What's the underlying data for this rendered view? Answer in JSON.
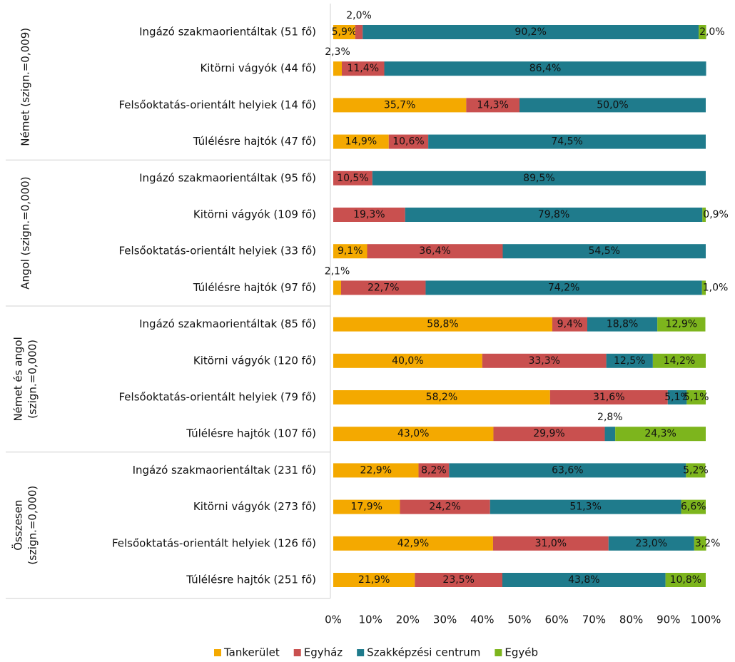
{
  "chart_data": {
    "type": "stacked_bar_horizontal",
    "groups": [
      [
        "Német (szign.=0,009)"
      ],
      [
        "Angol (szign.=0,000)"
      ],
      [
        "Német és angol",
        "(szign.=0,000)"
      ],
      [
        "Összesen",
        "(szign.=0,000)"
      ]
    ],
    "categories": [
      "Ingázó szakmaorientáltak (51 fő)",
      "Kitörni vágyók (44 fő)",
      "Felsőoktatás-orientált helyiek (14 fő)",
      "Túlélésre hajtók (47 fő)",
      "Ingázó szakmaorientáltak (95 fő)",
      "Kitörni vágyók (109 fő)",
      "Felsőoktatás-orientált helyiek (33 fő)",
      "Túlélésre hajtók (97 fő)",
      "Ingázó szakmaorientáltak (85 fő)",
      "Kitörni vágyók (120 fő)",
      "Felsőoktatás-orientált helyiek (79 fő)",
      "Túlélésre hajtók (107 fő)",
      "Ingázó szakmaorientáltak (231 fő)",
      "Kitörni vágyók (273 fő)",
      "Felsőoktatás-orientált helyiek (126 fő)",
      "Túlélésre hajtók (251 fő)"
    ],
    "series": [
      {
        "name": "Tankerület",
        "color": "#f4a900",
        "values": [
          5.9,
          2.3,
          35.7,
          14.9,
          null,
          null,
          9.1,
          2.1,
          58.8,
          40.0,
          58.2,
          43.0,
          22.9,
          17.9,
          42.9,
          21.9
        ],
        "value_labels": [
          "5,9%",
          "2,3%",
          "35,7%",
          "14,9%",
          null,
          null,
          "9,1%",
          "2,1%",
          "58,8%",
          "40,0%",
          "58,2%",
          "43,0%",
          "22,9%",
          "17,9%",
          "42,9%",
          "21,9%"
        ]
      },
      {
        "name": "Egyház",
        "color": "#c9504f",
        "values": [
          2.0,
          11.4,
          14.3,
          10.6,
          10.5,
          19.3,
          36.4,
          22.7,
          9.4,
          33.3,
          31.6,
          29.9,
          8.2,
          24.2,
          31.0,
          23.5
        ],
        "value_labels": [
          "2,0%",
          "11,4%",
          "14,3%",
          "10,6%",
          "10,5%",
          "19,3%",
          "36,4%",
          "22,7%",
          "9,4%",
          "33,3%",
          "31,6%",
          "29,9%",
          "8,2%",
          "24,2%",
          "31,0%",
          "23,5%"
        ]
      },
      {
        "name": "Szakképzési centrum",
        "color": "#1f7b8c",
        "values": [
          90.2,
          86.4,
          50.0,
          74.5,
          89.5,
          79.8,
          54.5,
          74.2,
          18.8,
          12.5,
          5.1,
          2.8,
          63.6,
          51.3,
          23.0,
          43.8
        ],
        "value_labels": [
          "90,2%",
          "86,4%",
          "50,0%",
          "74,5%",
          "89,5%",
          "79,8%",
          "54,5%",
          "74,2%",
          "18,8%",
          "12,5%",
          "5,1%",
          "2,8%",
          "63,6%",
          "51,3%",
          "23,0%",
          "43,8%"
        ]
      },
      {
        "name": "Egyéb",
        "color": "#7db51d",
        "values": [
          2.0,
          null,
          null,
          null,
          null,
          0.9,
          null,
          1.0,
          12.9,
          14.2,
          5.1,
          24.3,
          5.2,
          6.6,
          3.2,
          10.8
        ],
        "value_labels": [
          "2,0%",
          null,
          null,
          null,
          null,
          "0,9%",
          null,
          "1,0%",
          "12,9%",
          "14,2%",
          "5,1%",
          "24,3%",
          "5,2%",
          "6,6%",
          "3,2%",
          "10,8%"
        ]
      }
    ],
    "xlim": [
      0,
      100
    ],
    "xticks": [
      {
        "value": 0,
        "label": "0%"
      },
      {
        "value": 10,
        "label": "10%"
      },
      {
        "value": 20,
        "label": "20%"
      },
      {
        "value": 30,
        "label": "30%"
      },
      {
        "value": 40,
        "label": "40%"
      },
      {
        "value": 50,
        "label": "50%"
      },
      {
        "value": 60,
        "label": "60%"
      },
      {
        "value": 70,
        "label": "70%"
      },
      {
        "value": 80,
        "label": "80%"
      },
      {
        "value": 90,
        "label": "90%"
      },
      {
        "value": 100,
        "label": "100%"
      }
    ],
    "legend": "bottom"
  }
}
